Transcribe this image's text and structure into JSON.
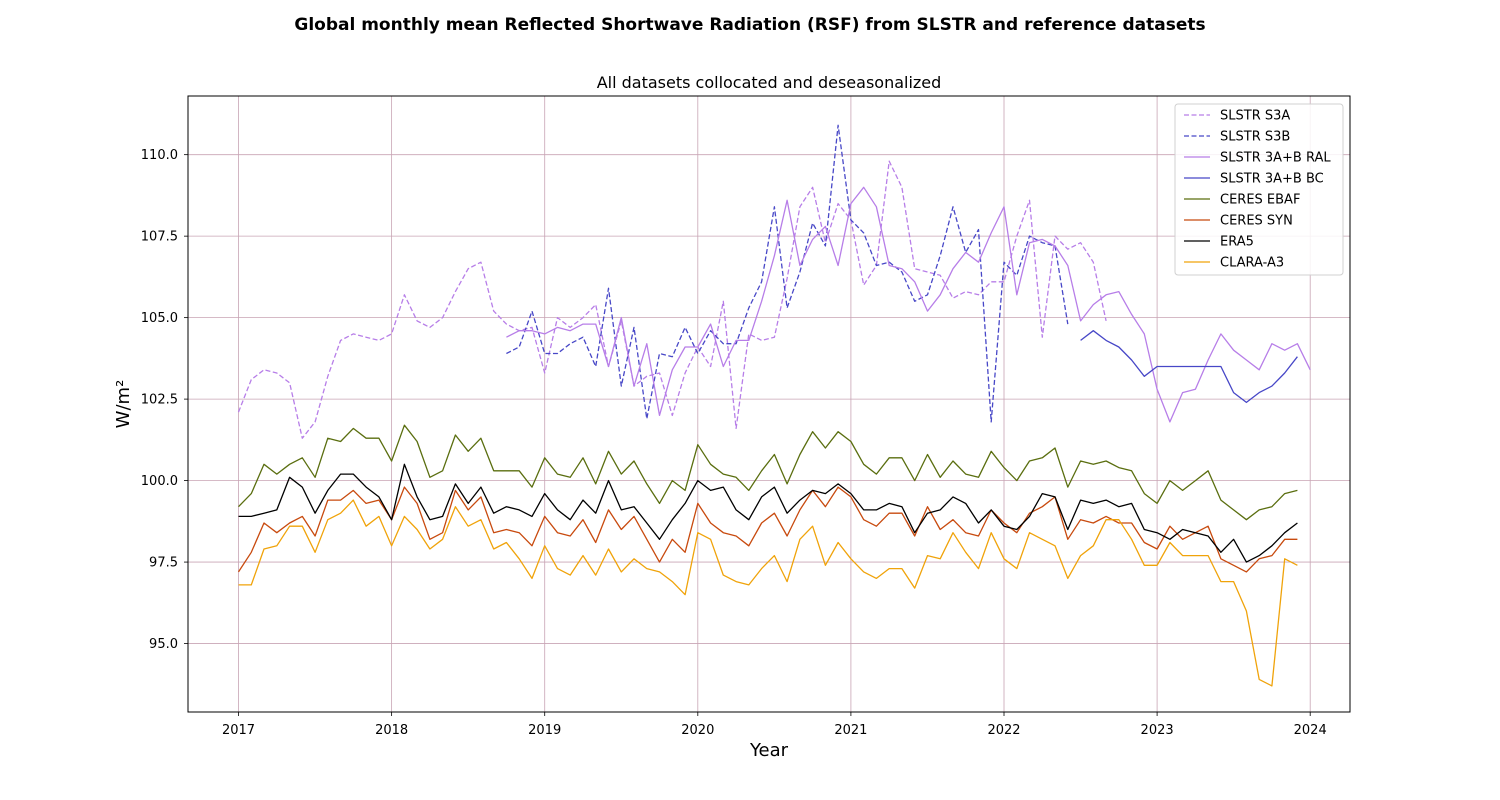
{
  "chart_data": {
    "type": "line",
    "title": "Global monthly mean Reflected Shortwave Radiation (RSF) from SLSTR and reference datasets",
    "subtitle": "All datasets collocated and deseasonalized",
    "xlabel": "Year",
    "ylabel": "W/m²",
    "xlim": [
      2016.67,
      2024.26
    ],
    "ylim": [
      92.9,
      111.8
    ],
    "xticks": [
      2017,
      2018,
      2019,
      2020,
      2021,
      2022,
      2023,
      2024
    ],
    "xtick_labels": [
      "2017",
      "2018",
      "2019",
      "2020",
      "2021",
      "2022",
      "2023",
      "2024"
    ],
    "yticks": [
      95.0,
      97.5,
      100.0,
      102.5,
      105.0,
      107.5,
      110.0
    ],
    "ytick_labels": [
      "95.0",
      "97.5",
      "100.0",
      "102.5",
      "105.0",
      "107.5",
      "110.0"
    ],
    "grid": true,
    "grid_color": "#c8a4b4",
    "legend_position": "top-right",
    "series": [
      {
        "name": "SLSTR S3A",
        "color": "#b77ee8",
        "dash": "dashed",
        "x_start": 2017.0,
        "values": [
          102.1,
          103.1,
          103.4,
          103.3,
          103.0,
          101.3,
          101.8,
          103.2,
          104.3,
          104.5,
          104.4,
          104.3,
          104.5,
          105.7,
          104.9,
          104.7,
          105.0,
          105.8,
          106.5,
          106.7,
          105.2,
          104.8,
          104.6,
          104.7,
          103.3,
          105.0,
          104.7,
          105.0,
          105.4,
          103.5,
          104.9,
          102.9,
          103.2,
          103.3,
          102.0,
          103.3,
          104.1,
          103.5,
          105.5,
          101.6,
          104.5,
          104.3,
          104.4,
          106.2,
          108.4,
          109.0,
          107.3,
          108.5,
          108.0,
          106.0,
          106.6,
          109.8,
          109.0,
          106.5,
          106.4,
          106.3,
          105.6,
          105.8,
          105.7,
          106.1,
          106.1,
          107.5,
          108.6,
          104.4,
          107.5,
          107.1,
          107.3,
          106.7,
          104.9,
          null,
          null,
          null,
          null,
          null,
          null,
          null,
          null,
          null,
          null,
          null,
          null,
          null,
          null,
          null
        ]
      },
      {
        "name": "SLSTR S3B",
        "color": "#4747c7",
        "dash": "dashed",
        "x_start": 2017.0,
        "values": [
          null,
          null,
          null,
          null,
          null,
          null,
          null,
          null,
          null,
          null,
          null,
          null,
          null,
          null,
          null,
          null,
          null,
          null,
          null,
          null,
          null,
          103.9,
          104.1,
          105.2,
          103.9,
          103.9,
          104.2,
          104.4,
          103.5,
          105.9,
          102.9,
          104.7,
          101.9,
          103.9,
          103.8,
          104.7,
          103.9,
          104.6,
          104.2,
          104.2,
          105.3,
          106.1,
          108.4,
          105.3,
          106.4,
          107.9,
          107.2,
          110.9,
          108.0,
          107.6,
          106.6,
          106.7,
          106.4,
          105.5,
          105.7,
          106.9,
          108.4,
          107.0,
          107.7,
          101.8,
          106.7,
          106.3,
          107.5,
          107.3,
          107.2,
          104.8,
          null,
          null,
          null,
          null,
          null,
          null,
          null,
          null,
          null,
          null,
          null,
          null,
          null,
          null,
          null,
          null,
          null,
          null
        ]
      },
      {
        "name": "SLSTR 3A+B RAL",
        "color": "#b77ee8",
        "dash": "solid",
        "x_start": 2017.0,
        "values": [
          null,
          null,
          null,
          null,
          null,
          null,
          null,
          null,
          null,
          null,
          null,
          null,
          null,
          null,
          null,
          null,
          null,
          null,
          null,
          null,
          null,
          104.4,
          104.6,
          104.6,
          104.5,
          104.7,
          104.6,
          104.8,
          104.8,
          103.5,
          105.0,
          102.9,
          104.2,
          102.0,
          103.4,
          104.1,
          104.1,
          104.8,
          103.5,
          104.3,
          104.3,
          105.5,
          106.9,
          108.6,
          106.6,
          107.4,
          107.8,
          106.6,
          108.5,
          109.0,
          108.4,
          106.6,
          106.5,
          106.1,
          105.2,
          105.7,
          106.5,
          107.0,
          106.7,
          107.6,
          108.4,
          105.7,
          107.3,
          107.4,
          107.2,
          106.6,
          104.9,
          105.4,
          105.7,
          105.8,
          105.1,
          104.5,
          102.8,
          101.8,
          102.7,
          102.8,
          103.7,
          104.5,
          104.0,
          103.7,
          103.4,
          104.2,
          104.0,
          104.2,
          103.4
        ]
      },
      {
        "name": "SLSTR 3A+B BC",
        "color": "#4747c7",
        "dash": "solid",
        "x_start": 2017.0,
        "values": [
          null,
          null,
          null,
          null,
          null,
          null,
          null,
          null,
          null,
          null,
          null,
          null,
          null,
          null,
          null,
          null,
          null,
          null,
          null,
          null,
          null,
          null,
          null,
          null,
          null,
          null,
          null,
          null,
          null,
          null,
          null,
          null,
          null,
          null,
          null,
          null,
          null,
          null,
          null,
          null,
          null,
          null,
          null,
          null,
          null,
          null,
          null,
          null,
          null,
          null,
          null,
          null,
          null,
          null,
          null,
          null,
          null,
          null,
          null,
          null,
          null,
          null,
          null,
          null,
          null,
          null,
          104.3,
          104.6,
          104.3,
          104.1,
          103.7,
          103.2,
          103.5,
          103.5,
          103.5,
          103.5,
          103.5,
          103.5,
          102.7,
          102.4,
          102.7,
          102.9,
          103.3,
          103.8
        ]
      },
      {
        "name": "CERES EBAF",
        "color": "#5a6e0f",
        "dash": "solid",
        "x_start": 2017.0,
        "values": [
          99.2,
          99.6,
          100.5,
          100.2,
          100.5,
          100.7,
          100.1,
          101.3,
          101.2,
          101.6,
          101.3,
          101.3,
          100.6,
          101.7,
          101.2,
          100.1,
          100.3,
          101.4,
          100.9,
          101.3,
          100.3,
          100.3,
          100.3,
          99.8,
          100.7,
          100.2,
          100.1,
          100.7,
          99.9,
          100.9,
          100.2,
          100.6,
          99.9,
          99.3,
          100.0,
          99.7,
          101.1,
          100.5,
          100.2,
          100.1,
          99.7,
          100.3,
          100.8,
          99.9,
          100.8,
          101.5,
          101.0,
          101.5,
          101.2,
          100.5,
          100.2,
          100.7,
          100.7,
          100.0,
          100.8,
          100.1,
          100.6,
          100.2,
          100.1,
          100.9,
          100.4,
          100.0,
          100.6,
          100.7,
          101.0,
          99.8,
          100.6,
          100.5,
          100.6,
          100.4,
          100.3,
          99.6,
          99.3,
          100.0,
          99.7,
          100.0,
          100.3,
          99.4,
          99.1,
          98.8,
          99.1,
          99.2,
          99.6,
          99.7
        ]
      },
      {
        "name": "CERES SYN",
        "color": "#c84a0e",
        "dash": "solid",
        "x_start": 2017.0,
        "values": [
          97.2,
          97.8,
          98.7,
          98.4,
          98.7,
          98.9,
          98.3,
          99.4,
          99.4,
          99.7,
          99.3,
          99.4,
          98.8,
          99.8,
          99.3,
          98.2,
          98.4,
          99.7,
          99.1,
          99.5,
          98.4,
          98.5,
          98.4,
          98.0,
          98.9,
          98.4,
          98.3,
          98.8,
          98.1,
          99.1,
          98.5,
          98.9,
          98.2,
          97.5,
          98.2,
          97.8,
          99.3,
          98.7,
          98.4,
          98.3,
          98.0,
          98.7,
          99.0,
          98.3,
          99.1,
          99.7,
          99.2,
          99.8,
          99.5,
          98.8,
          98.6,
          99.0,
          99.0,
          98.3,
          99.2,
          98.5,
          98.8,
          98.4,
          98.3,
          99.1,
          98.7,
          98.4,
          99.0,
          99.2,
          99.5,
          98.2,
          98.8,
          98.7,
          98.9,
          98.7,
          98.7,
          98.1,
          97.9,
          98.6,
          98.2,
          98.4,
          98.6,
          97.6,
          97.4,
          97.2,
          97.6,
          97.7,
          98.2,
          98.2
        ]
      },
      {
        "name": "ERA5",
        "color": "#000000",
        "dash": "solid",
        "x_start": 2017.0,
        "values": [
          98.9,
          98.9,
          99.0,
          99.1,
          100.1,
          99.8,
          99.0,
          99.7,
          100.2,
          100.2,
          99.8,
          99.5,
          98.8,
          100.5,
          99.5,
          98.8,
          98.9,
          99.9,
          99.3,
          99.8,
          99.0,
          99.2,
          99.1,
          98.9,
          99.6,
          99.1,
          98.8,
          99.4,
          99.0,
          100.0,
          99.1,
          99.2,
          98.7,
          98.2,
          98.8,
          99.3,
          100.0,
          99.7,
          99.8,
          99.1,
          98.8,
          99.5,
          99.8,
          99.0,
          99.4,
          99.7,
          99.6,
          99.9,
          99.6,
          99.1,
          99.1,
          99.3,
          99.2,
          98.4,
          99.0,
          99.1,
          99.5,
          99.3,
          98.7,
          99.1,
          98.6,
          98.5,
          98.9,
          99.6,
          99.5,
          98.5,
          99.4,
          99.3,
          99.4,
          99.2,
          99.3,
          98.5,
          98.4,
          98.2,
          98.5,
          98.4,
          98.3,
          97.8,
          98.2,
          97.5,
          97.7,
          98.0,
          98.4,
          98.7
        ]
      },
      {
        "name": "CLARA-A3",
        "color": "#f0a30a",
        "dash": "solid",
        "x_start": 2017.0,
        "values": [
          96.8,
          96.8,
          97.9,
          98.0,
          98.6,
          98.6,
          97.8,
          98.8,
          99.0,
          99.4,
          98.6,
          98.9,
          98.0,
          98.9,
          98.5,
          97.9,
          98.2,
          99.2,
          98.6,
          98.8,
          97.9,
          98.1,
          97.6,
          97.0,
          98.0,
          97.3,
          97.1,
          97.7,
          97.1,
          97.9,
          97.2,
          97.6,
          97.3,
          97.2,
          96.9,
          96.5,
          98.4,
          98.2,
          97.1,
          96.9,
          96.8,
          97.3,
          97.7,
          96.9,
          98.2,
          98.6,
          97.4,
          98.1,
          97.6,
          97.2,
          97.0,
          97.3,
          97.3,
          96.7,
          97.7,
          97.6,
          98.4,
          97.8,
          97.3,
          98.4,
          97.6,
          97.3,
          98.4,
          98.2,
          98.0,
          97.0,
          97.7,
          98.0,
          98.8,
          98.8,
          98.2,
          97.4,
          97.4,
          98.1,
          97.7,
          97.7,
          97.7,
          96.9,
          96.9,
          96.0,
          93.9,
          93.7,
          97.6,
          97.4
        ]
      }
    ]
  }
}
